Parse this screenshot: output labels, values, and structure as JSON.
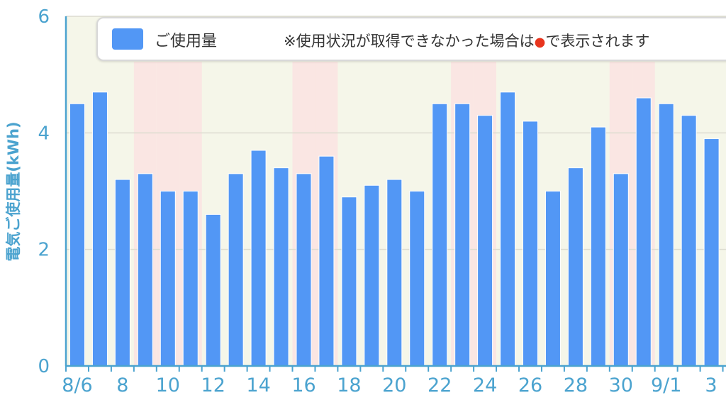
{
  "chart_data": {
    "type": "bar",
    "ylabel": "電気ご使用量(kWh)",
    "ylim": [
      0,
      6
    ],
    "yticks": [
      0,
      2,
      4,
      6
    ],
    "grid": true,
    "legend_position": "top",
    "categories": [
      "8/6",
      "7",
      "8",
      "9",
      "10",
      "11",
      "12",
      "13",
      "14",
      "15",
      "16",
      "17",
      "18",
      "19",
      "20",
      "21",
      "22",
      "23",
      "24",
      "25",
      "26",
      "27",
      "28",
      "29",
      "30",
      "31",
      "9/1",
      "2",
      "3"
    ],
    "xtick_labels": [
      "8/6",
      "8",
      "10",
      "12",
      "14",
      "16",
      "18",
      "20",
      "22",
      "24",
      "26",
      "28",
      "30",
      "9/1",
      "3"
    ],
    "series": [
      {
        "name": "ご使用量",
        "values": [
          4.5,
          4.7,
          3.2,
          3.3,
          3.0,
          3.0,
          2.6,
          3.3,
          3.7,
          3.4,
          3.3,
          3.6,
          2.9,
          3.1,
          3.2,
          3.0,
          4.5,
          4.5,
          4.3,
          4.7,
          4.2,
          3.0,
          3.4,
          4.1,
          3.3,
          4.6,
          4.5,
          4.3,
          3.9
        ]
      }
    ],
    "weekend_categories": [
      "9",
      "10",
      "11",
      "16",
      "17",
      "23",
      "24",
      "30",
      "31"
    ]
  },
  "legend": {
    "series_label": "ご使用量",
    "note_prefix": "※使用状況が取得できなかった場合は",
    "note_dot": "●",
    "note_suffix": "で表示されます"
  },
  "colors": {
    "bar": "#5297f5",
    "plot_bg": "#f5f6e9",
    "weekend_bg": "#fae6e3",
    "axis": "#4ba3cf",
    "dot": "#e8351e"
  }
}
